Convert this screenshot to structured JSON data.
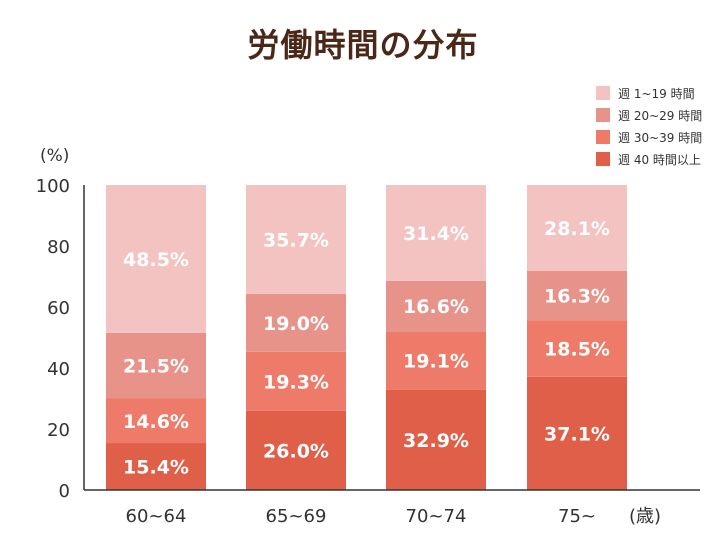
{
  "chart_data": {
    "type": "bar",
    "stacked": true,
    "title": "労働時間の分布",
    "ylabel": "(%)",
    "xlabel": "(歳)",
    "ylim": [
      0,
      100
    ],
    "yticks": [
      "0",
      "20",
      "40",
      "60",
      "80",
      "100"
    ],
    "categories": [
      "60~64",
      "65~69",
      "70~74",
      "75~"
    ],
    "legend_position": "top-right",
    "series": [
      {
        "name": "週 40 時間以上",
        "color": "#e05f48",
        "values": [
          15.4,
          26.0,
          32.9,
          37.1
        ],
        "labels": [
          "15.4%",
          "26.0%",
          "32.9%",
          "37.1%"
        ]
      },
      {
        "name": "週 30~39 時間",
        "color": "#ee7b69",
        "values": [
          14.6,
          19.3,
          19.1,
          18.5
        ],
        "labels": [
          "14.6%",
          "19.3%",
          "19.1%",
          "18.5%"
        ]
      },
      {
        "name": "週 20~29 時間",
        "color": "#e8938a",
        "values": [
          21.5,
          19.0,
          16.6,
          16.3
        ],
        "labels": [
          "21.5%",
          "19.0%",
          "16.6%",
          "16.3%"
        ]
      },
      {
        "name": "週 1~19 時間",
        "color": "#f2c3c1",
        "values": [
          48.5,
          35.7,
          31.4,
          28.1
        ],
        "labels": [
          "48.5%",
          "35.7%",
          "31.4%",
          "28.1%"
        ]
      }
    ]
  }
}
